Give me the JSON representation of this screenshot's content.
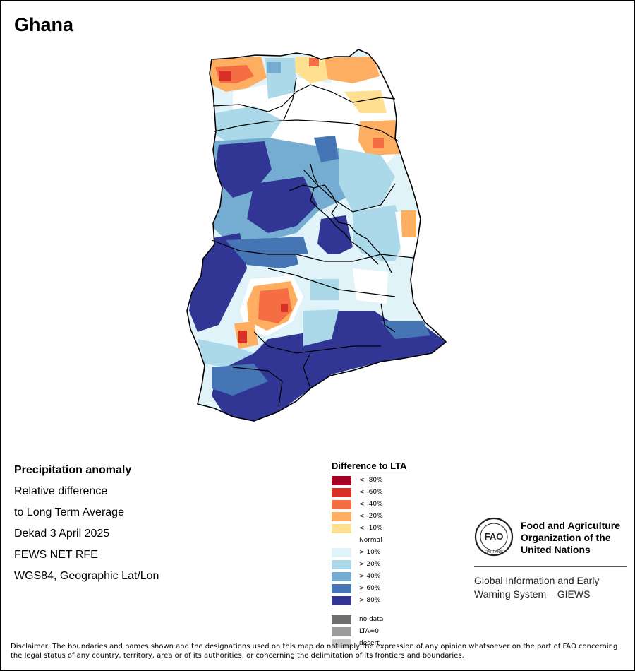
{
  "map": {
    "country": "Ghana"
  },
  "meta": {
    "title": "Precipitation anomaly",
    "line1": "Relative difference",
    "line2": "to Long Term Average",
    "period": "Dekad 3 April 2025",
    "source": "FEWS NET RFE",
    "projection": "WGS84, Geographic Lat/Lon"
  },
  "legend": {
    "title": "Difference to LTA",
    "classes": [
      {
        "label": "< -80%",
        "color": "#a50026"
      },
      {
        "label": "< -60%",
        "color": "#d73027"
      },
      {
        "label": "< -40%",
        "color": "#f46d43"
      },
      {
        "label": "< -20%",
        "color": "#fdae61"
      },
      {
        "label": "< -10%",
        "color": "#fee090"
      },
      {
        "label": "Normal",
        "color": "#ffffff"
      },
      {
        "label": "> 10%",
        "color": "#e0f3f8"
      },
      {
        "label": "> 20%",
        "color": "#abd9e9"
      },
      {
        "label": "> 40%",
        "color": "#74add1"
      },
      {
        "label": "> 60%",
        "color": "#4575b4"
      },
      {
        "label": "> 80%",
        "color": "#313695"
      }
    ],
    "extra": [
      {
        "label": "no data",
        "color": "#6e6e6e"
      },
      {
        "label": "LTA=0",
        "color": "#9c9c9c"
      },
      {
        "label": "desert",
        "color": "#c8c8c8"
      }
    ]
  },
  "org": {
    "name": "Food and Agriculture Organization of the United Nations",
    "logo_text": "FAO",
    "motto": "FIAT PANIS",
    "system": "Global Information and Early Warning System – GIEWS"
  },
  "disclaimer": "Disclaimer: The boundaries and names shown and the designations used on this map do not imply the expression of any opinion whatsoever on the part of FAO concerning the legal status of any country, territory, area or of its authorities, or concerning the delimitation of its frontiers and boundaries."
}
